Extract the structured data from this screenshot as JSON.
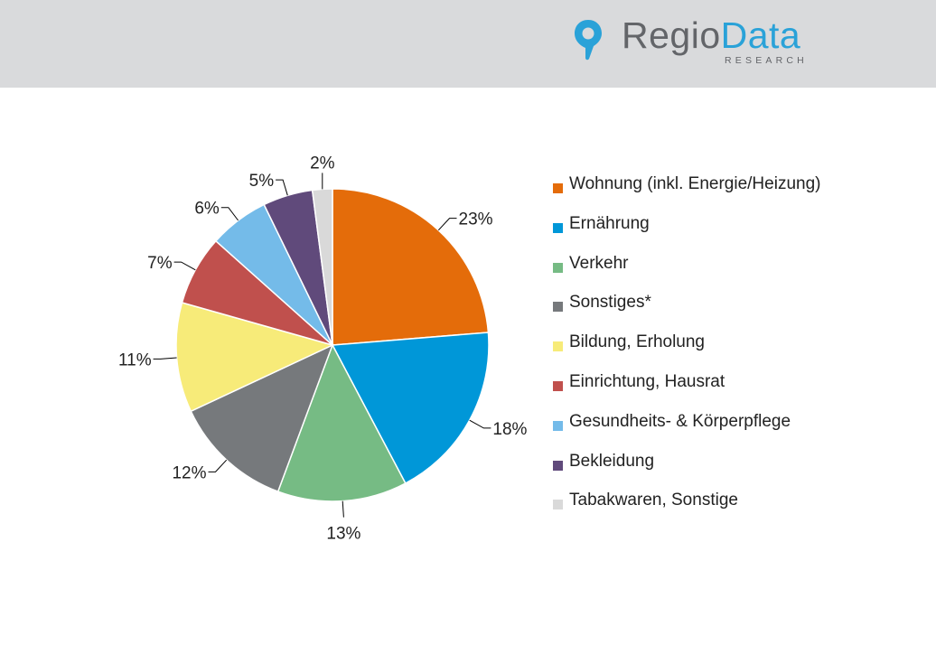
{
  "brand": {
    "name_part1": "Regio",
    "name_part2": "Data",
    "tagline": "RESEARCH",
    "colors": {
      "gray": "#636569",
      "blue": "#2aa2d8",
      "header_bg": "#d9dadc"
    },
    "icon": "map-pin-icon"
  },
  "chart_data": {
    "type": "pie",
    "unit": "%",
    "start_angle": "12 o'clock",
    "direction": "clockwise",
    "legend_position": "right",
    "slices": [
      {
        "label": "Wohnung (inkl. Energie/Heizung)",
        "value": 23,
        "color": "#e46c0a"
      },
      {
        "label": "Ernährung",
        "value": 18,
        "color": "#0097d8"
      },
      {
        "label": "Verkehr",
        "value": 13,
        "color": "#76bb84"
      },
      {
        "label": "Sonstiges*",
        "value": 12,
        "color": "#76797c"
      },
      {
        "label": "Bildung, Erholung",
        "value": 11,
        "color": "#f7eb79"
      },
      {
        "label": "Einrichtung, Hausrat",
        "value": 7,
        "color": "#c0504d"
      },
      {
        "label": "Gesundheits- & Körperpflege",
        "value": 6,
        "color": "#74bbe9"
      },
      {
        "label": "Bekleidung",
        "value": 5,
        "color": "#604a7b"
      },
      {
        "label": "Tabakwaren, Sonstige",
        "value": 2,
        "color": "#d9d9d9"
      }
    ]
  }
}
